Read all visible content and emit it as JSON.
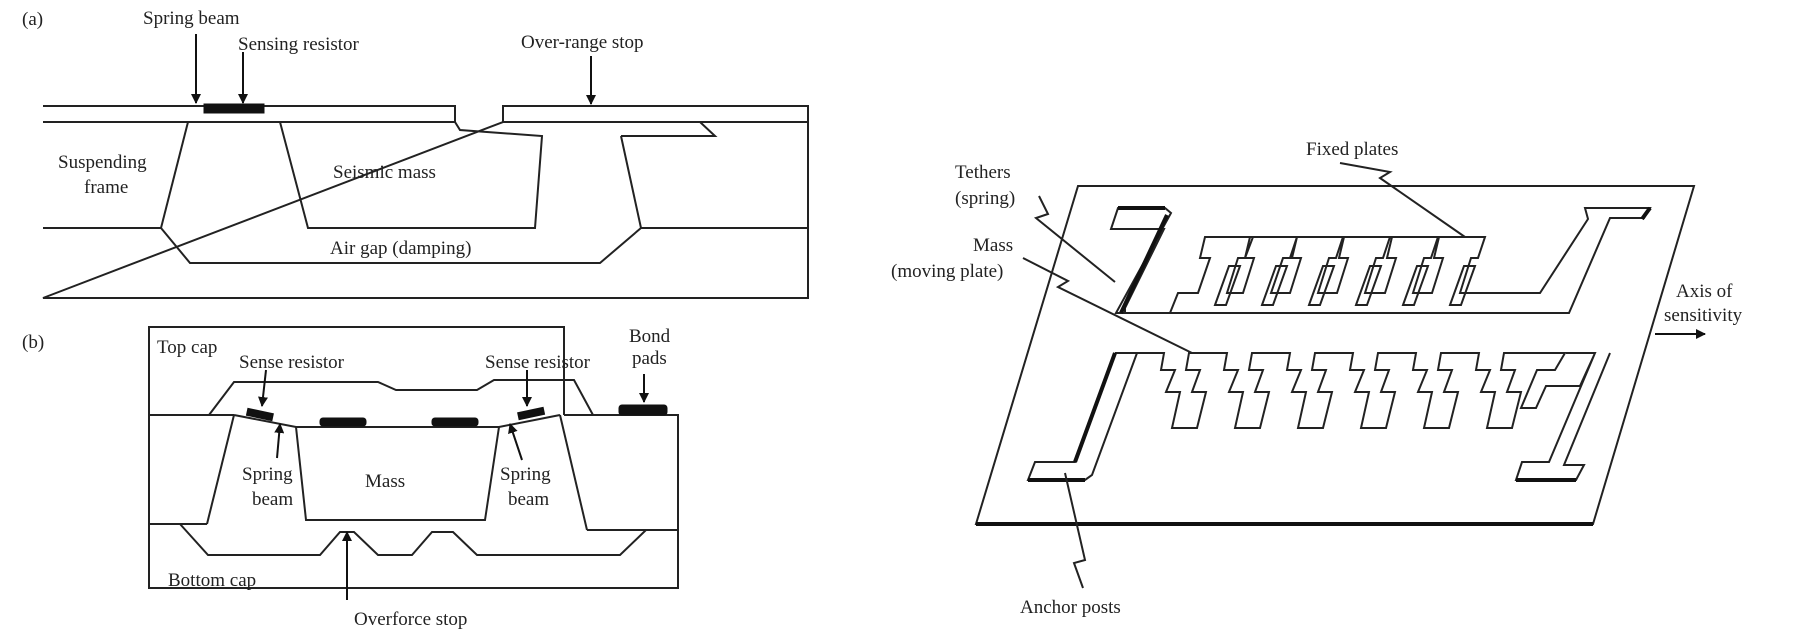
{
  "panel_a": {
    "tag": "(a)",
    "spring_beam": "Spring beam",
    "sensing_resistor": "Sensing resistor",
    "over_range_stop": "Over-range stop",
    "suspending": "Suspending",
    "frame": "frame",
    "seismic_mass": "Seismic mass",
    "air_gap": "Air gap (damping)"
  },
  "panel_b": {
    "tag": "(b)",
    "top_cap": "Top cap",
    "sense_resistor_left": "Sense resistor",
    "sense_resistor_right": "Sense resistor",
    "bond": "Bond",
    "pads": "pads",
    "spring_left_1": "Spring",
    "spring_left_2": "beam",
    "mass": "Mass",
    "spring_right_1": "Spring",
    "spring_right_2": "beam",
    "bottom_cap": "Bottom cap",
    "overforce_stop": "Overforce stop"
  },
  "panel_c": {
    "fixed_plates": "Fixed plates",
    "tethers_1": "Tethers",
    "tethers_2": "(spring)",
    "mass_1": "Mass",
    "mass_2": "(moving plate)",
    "axis_1": "Axis of",
    "axis_2": "sensitivity",
    "anchor_posts": "Anchor posts"
  }
}
